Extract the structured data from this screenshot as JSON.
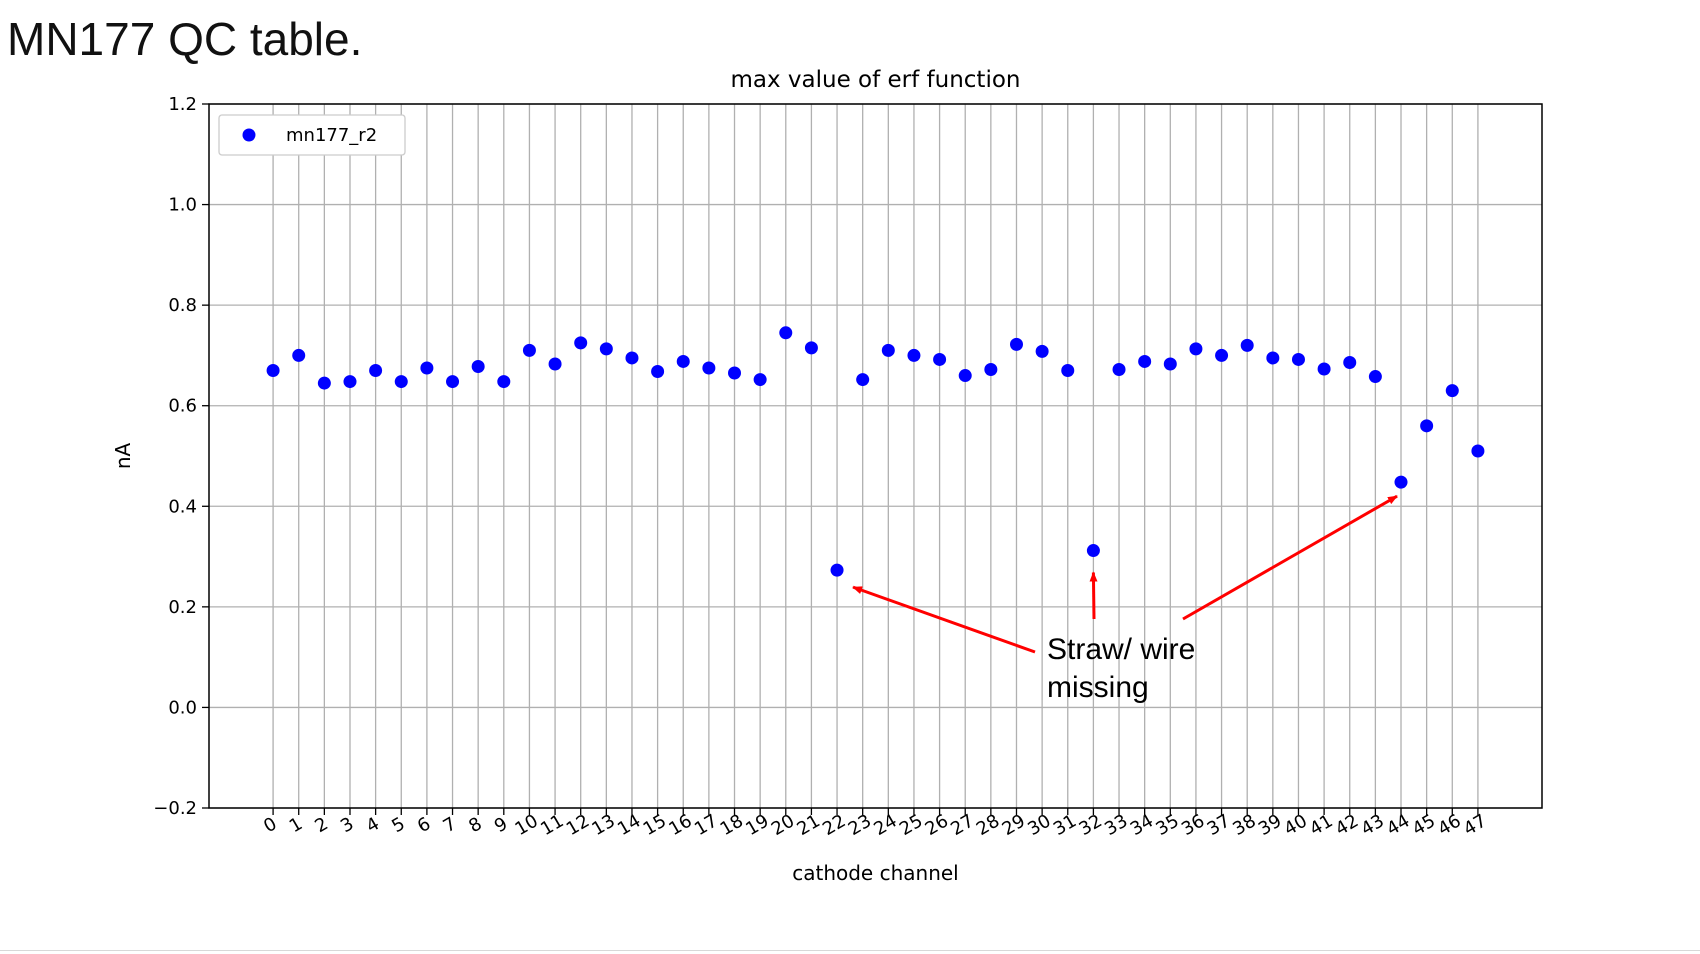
{
  "slide": {
    "title": "MN177 QC table."
  },
  "chart_data": {
    "type": "scatter",
    "title": "max value of erf function",
    "xlabel": "cathode channel",
    "ylabel": "nA",
    "ylim": [
      -0.2,
      1.2
    ],
    "xlim": [
      -2.5,
      49.5
    ],
    "grid": true,
    "legend_position": "upper-left",
    "x_ticks": [
      0,
      1,
      2,
      3,
      4,
      5,
      6,
      7,
      8,
      9,
      10,
      11,
      12,
      13,
      14,
      15,
      16,
      17,
      18,
      19,
      20,
      21,
      22,
      23,
      24,
      25,
      26,
      27,
      28,
      29,
      30,
      31,
      32,
      33,
      34,
      35,
      36,
      37,
      38,
      39,
      40,
      41,
      42,
      43,
      44,
      45,
      46,
      47
    ],
    "y_ticks": [
      -0.2,
      0.0,
      0.2,
      0.4,
      0.6,
      0.8,
      1.0,
      1.2
    ],
    "y_tick_labels": [
      "−0.2",
      "0.0",
      "0.2",
      "0.4",
      "0.6",
      "0.8",
      "1.0",
      "1.2"
    ],
    "series": [
      {
        "name": "mn177_r2",
        "color": "#0000ff",
        "x": [
          0,
          1,
          2,
          3,
          4,
          5,
          6,
          7,
          8,
          9,
          10,
          11,
          12,
          13,
          14,
          15,
          16,
          17,
          18,
          19,
          20,
          21,
          22,
          23,
          24,
          25,
          26,
          27,
          28,
          29,
          30,
          31,
          32,
          33,
          34,
          35,
          36,
          37,
          38,
          39,
          40,
          41,
          42,
          43,
          44,
          45,
          46,
          47
        ],
        "y": [
          0.67,
          0.7,
          0.645,
          0.648,
          0.67,
          0.648,
          0.675,
          0.648,
          0.678,
          0.648,
          0.71,
          0.683,
          0.725,
          0.713,
          0.695,
          0.668,
          0.688,
          0.675,
          0.665,
          0.652,
          0.745,
          0.715,
          0.273,
          0.652,
          0.71,
          0.7,
          0.692,
          0.66,
          0.672,
          0.722,
          0.708,
          0.67,
          0.312,
          0.672,
          0.688,
          0.683,
          0.713,
          0.7,
          0.72,
          0.695,
          0.692,
          0.673,
          0.686,
          0.658,
          0.448,
          0.56,
          0.63,
          0.51
        ]
      }
    ],
    "annotations": [
      {
        "text_lines": [
          "Straw/ wire",
          "missing"
        ],
        "color": "#ff0000",
        "targets": [
          22,
          32,
          44
        ]
      }
    ]
  }
}
